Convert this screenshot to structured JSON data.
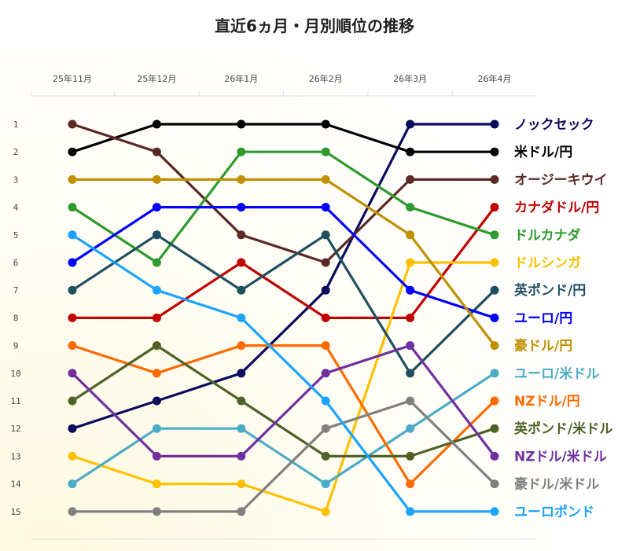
{
  "chart_data": {
    "type": "line",
    "title": "直近6ヵ月・月別順位の推移",
    "categories": [
      "25年11月",
      "25年12月",
      "26年1月",
      "26年2月",
      "26年3月",
      "26年4月"
    ],
    "y_ticks": [
      "1",
      "2",
      "3",
      "4",
      "5",
      "6",
      "7",
      "8",
      "9",
      "10",
      "11",
      "12",
      "13",
      "14",
      "15"
    ],
    "ylim": [
      15,
      1
    ],
    "y_inverted": true,
    "grid": false,
    "legend": "right-end labels",
    "series": [
      {
        "name": "ノックセック",
        "color": "#0a0a5e",
        "values": [
          12,
          11,
          10,
          7,
          1,
          1
        ]
      },
      {
        "name": "米ドル/円",
        "color": "#000000",
        "values": [
          2,
          1,
          1,
          1,
          2,
          2
        ]
      },
      {
        "name": "オージーキウイ",
        "color": "#5c2a24",
        "values": [
          1,
          2,
          5,
          6,
          3,
          3
        ]
      },
      {
        "name": "カナダドル/円",
        "color": "#c00000",
        "values": [
          8,
          8,
          6,
          8,
          8,
          4
        ]
      },
      {
        "name": "ドルカナダ",
        "color": "#2e9a2e",
        "values": [
          4,
          6,
          2,
          2,
          4,
          5
        ]
      },
      {
        "name": "ドルシンガ",
        "color": "#ffc000",
        "values": [
          13,
          14,
          14,
          15,
          6,
          6
        ]
      },
      {
        "name": "英ポンド/円",
        "color": "#1f5060",
        "values": [
          7,
          5,
          7,
          5,
          10,
          7
        ]
      },
      {
        "name": "ユーロ/円",
        "color": "#0000ff",
        "values": [
          6,
          4,
          4,
          4,
          7,
          8
        ]
      },
      {
        "name": "豪ドル/円",
        "color": "#bf9000",
        "values": [
          3,
          3,
          3,
          3,
          5,
          9
        ]
      },
      {
        "name": "ユーロ/米ドル",
        "color": "#4bacc6",
        "values": [
          14,
          12,
          12,
          14,
          12,
          10
        ]
      },
      {
        "name": "NZドル/円",
        "color": "#ff6a00",
        "values": [
          9,
          10,
          9,
          9,
          14,
          11
        ]
      },
      {
        "name": "英ポンド/米ドル",
        "color": "#4f6228",
        "values": [
          11,
          9,
          11,
          13,
          13,
          12
        ]
      },
      {
        "name": "NZドル/米ドル",
        "color": "#7030a0",
        "values": [
          10,
          13,
          13,
          10,
          9,
          13
        ]
      },
      {
        "name": "豪ドル/米ドル",
        "color": "#808080",
        "values": [
          15,
          15,
          15,
          12,
          11,
          14
        ]
      },
      {
        "name": "ユーロポンド",
        "color": "#1aa3ff",
        "values": [
          5,
          7,
          8,
          11,
          15,
          15
        ]
      }
    ],
    "label_colors": {
      "ノックセック": "#0a0a5e",
      "米ドル/円": "#000000",
      "オージーキウイ": "#5c2a24",
      "カナダドル/円": "#c00000",
      "ドルカナダ": "#2e9a2e",
      "ドルシンガ": "#ffc000",
      "英ポンド/円": "#1f5060",
      "ユーロ/円": "#0000ff",
      "豪ドル/円": "#bf9000",
      "ユーロ/米ドル": "#4bacc6",
      "NZドル/円": "#ff6a00",
      "英ポンド/米ドル": "#4f6228",
      "NZドル/米ドル": "#7030a0",
      "豪ドル/米ドル": "#808080",
      "ユーロポンド": "#1aa3ff"
    },
    "background": {
      "plot_tint": "#fffbea",
      "axis_line": "#dddddd"
    }
  }
}
